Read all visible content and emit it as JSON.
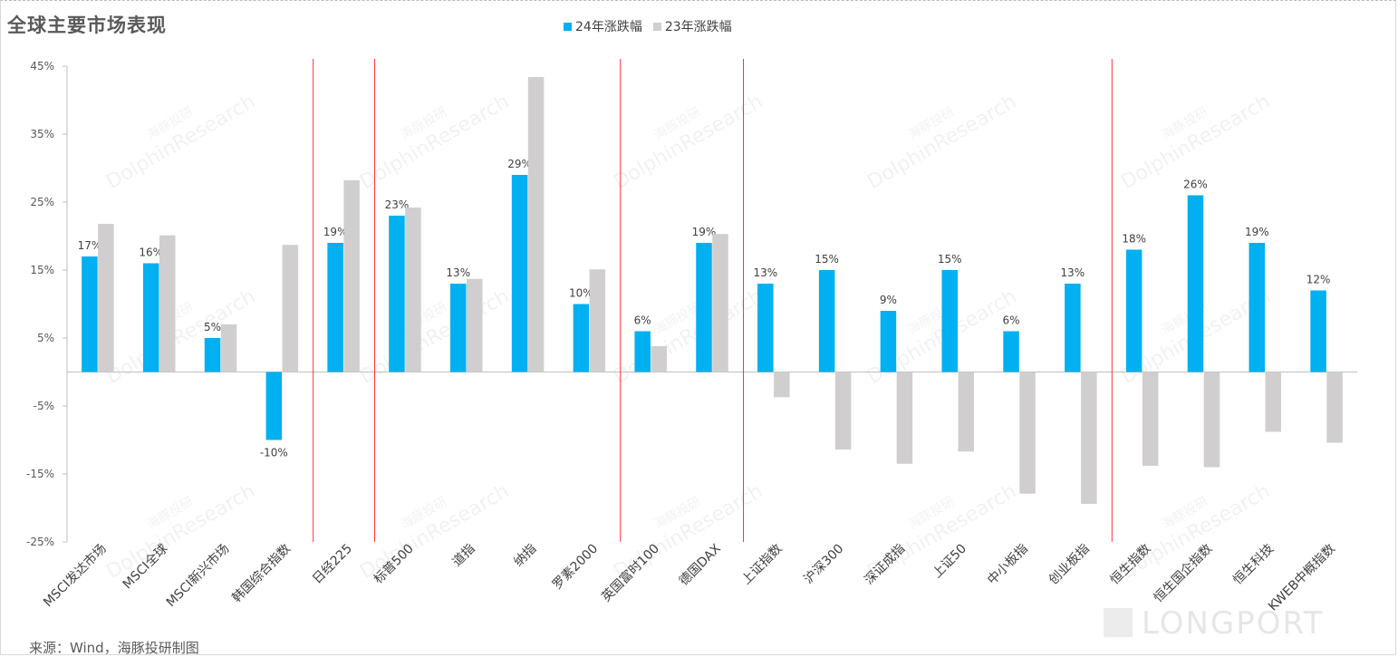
{
  "title": "全球主要市场表现",
  "source_note": "来源：Wind，海豚投研制图",
  "brand": "LONGPORT",
  "watermark": {
    "line1": "海豚投研",
    "line2": "DolphinResearch"
  },
  "chart_data": {
    "type": "bar",
    "title": "全球主要市场表现",
    "categories": [
      "MSCI发达市场",
      "MSCI全球",
      "MSCI新兴市场",
      "韩国综合指数",
      "日经225",
      "标普500",
      "道指",
      "纳指",
      "罗素2000",
      "英国富时100",
      "德国DAX",
      "上证指数",
      "沪深300",
      "深证成指",
      "上证50",
      "中小板指",
      "创业板指",
      "恒生指数",
      "恒生国企指数",
      "恒生科技",
      "KWEB中概指数"
    ],
    "series": [
      {
        "name": "24年涨跌幅",
        "color": "#00b0f0",
        "values": [
          17,
          16,
          5,
          -10,
          19,
          23,
          13,
          29,
          10,
          6,
          19,
          13,
          15,
          9,
          15,
          6,
          13,
          18,
          26,
          19,
          12
        ],
        "labels": [
          "17%",
          "16%",
          "5%",
          "-10%",
          "19%",
          "23%",
          "13%",
          "29%",
          "10%",
          "6%",
          "19%",
          "13%",
          "15%",
          "9%",
          "15%",
          "6%",
          "13%",
          "18%",
          "26%",
          "19%",
          "12%"
        ]
      },
      {
        "name": "23年涨跌幅",
        "color": "#d0cece",
        "values": [
          21.8,
          20.1,
          7.0,
          18.7,
          28.2,
          24.2,
          13.7,
          43.4,
          15.1,
          3.8,
          20.3,
          -3.7,
          -11.4,
          -13.5,
          -11.7,
          -17.9,
          -19.4,
          -13.8,
          -14.0,
          -8.8,
          -10.4
        ]
      }
    ],
    "y_axis": {
      "min": -25,
      "max": 45,
      "ticks": [
        45,
        35,
        25,
        15,
        5,
        -5,
        -15,
        -25
      ],
      "tick_labels": [
        "45%",
        "35%",
        "25%",
        "15%",
        "5%",
        "-5%",
        "-15%",
        "-25%"
      ]
    },
    "group_separators_after_category": [
      3,
      4,
      8,
      10,
      16
    ],
    "separator_color": "#ff0000",
    "grid": false,
    "legend": "top-center"
  }
}
